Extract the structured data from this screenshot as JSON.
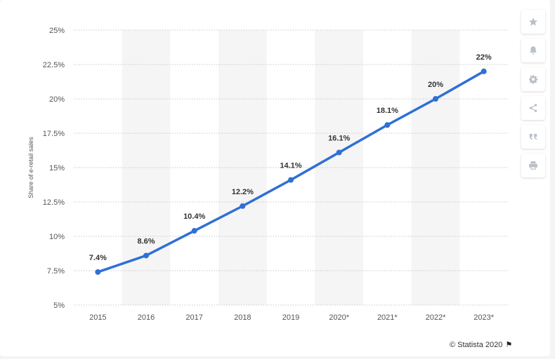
{
  "chart_data": {
    "type": "line",
    "categories": [
      "2015",
      "2016",
      "2017",
      "2018",
      "2019",
      "2020*",
      "2021*",
      "2022*",
      "2023*"
    ],
    "series": [
      {
        "values": [
          7.4,
          8.6,
          10.4,
          12.2,
          14.1,
          16.1,
          18.1,
          20,
          22
        ],
        "data_labels": [
          "7.4%",
          "8.6%",
          "10.4%",
          "12.2%",
          "14.1%",
          "16.1%",
          "18.1%",
          "20%",
          "22%"
        ],
        "color": "#2f6fd6"
      }
    ],
    "ylabel": "Share of e-retail sales",
    "ylim": [
      5,
      25
    ],
    "yticks": [
      5,
      7.5,
      10,
      12.5,
      15,
      17.5,
      20,
      22.5,
      25
    ],
    "ytick_labels": [
      "5%",
      "7.5%",
      "10%",
      "12.5%",
      "15%",
      "17.5%",
      "20%",
      "22.5%",
      "25%"
    ],
    "grid": true,
    "alternating_column_shading": true
  },
  "toolbar": {
    "items": [
      {
        "icon": "star-icon"
      },
      {
        "icon": "bell-icon"
      },
      {
        "icon": "gear-icon"
      },
      {
        "icon": "share-icon"
      },
      {
        "icon": "quote-icon"
      },
      {
        "icon": "print-icon"
      }
    ]
  },
  "footer": {
    "credit": "© Statista 2020",
    "flag_icon": "flag-icon"
  }
}
